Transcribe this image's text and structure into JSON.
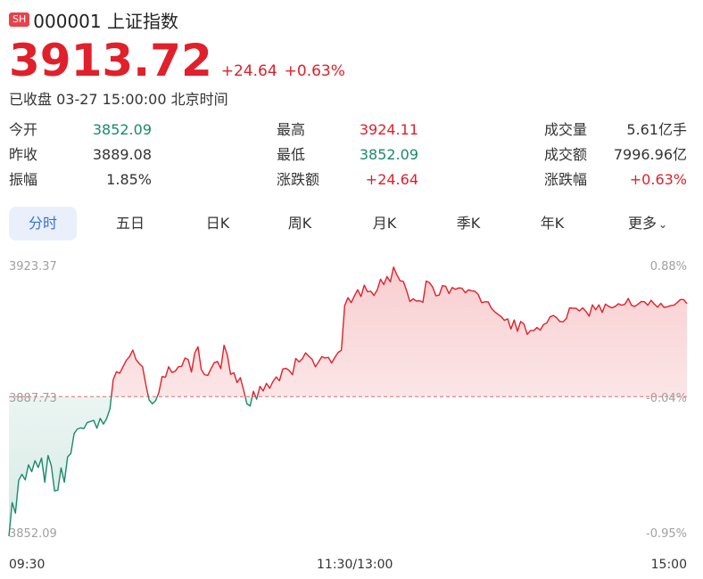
{
  "header": {
    "badge": "SH",
    "code_name": "000001 上证指数"
  },
  "quote": {
    "price": "3913.72",
    "change": "+24.64",
    "change_pct": "+0.63%",
    "status": "已收盘 03-27 15:00:00 北京时间"
  },
  "stats": {
    "open_label": "今开",
    "open": "3852.09",
    "high_label": "最高",
    "high": "3924.11",
    "volume_label": "成交量",
    "volume": "5.61亿手",
    "prev_label": "昨收",
    "prev": "3889.08",
    "low_label": "最低",
    "low": "3852.09",
    "amount_label": "成交额",
    "amount": "7996.96亿",
    "amp_label": "振幅",
    "amp": "1.85%",
    "chg_amt_label": "涨跌额",
    "chg_amt": "+24.64",
    "chg_pct_label": "涨跌幅",
    "chg_pct": "+0.63%"
  },
  "tabs": [
    "分时",
    "五日",
    "日K",
    "周K",
    "月K",
    "季K",
    "年K",
    "更多"
  ],
  "active_tab": 0,
  "colors": {
    "up": "#e0202a",
    "down": "#1a8a6a",
    "tab_active_bg": "#e9f0fb",
    "tab_active_text": "#3a72c9",
    "badge": "#e8424a"
  },
  "chart_data": {
    "type": "line",
    "x_tick_labels": [
      "09:30",
      "11:30/13:00",
      "15:00"
    ],
    "y_left_ticks": [
      "3923.37",
      "3887.73",
      "3852.09"
    ],
    "y_right_ticks": [
      "0.88%",
      "-0.04%",
      "-0.95%"
    ],
    "ylim": [
      3852.09,
      3923.37
    ],
    "ref_value": 3889.08,
    "series": [
      {
        "values": [
          3852.09,
          3861.0,
          3858.2,
          3866.9,
          3868.5,
          3867.0,
          3871.0,
          3869.2,
          3872.1,
          3870.3,
          3872.8,
          3866.4,
          3873.5,
          3870.8,
          3864.1,
          3864.3,
          3870.2,
          3866.4,
          3873.1,
          3874.0,
          3879.3,
          3880.5,
          3880.8,
          3880.6,
          3882.2,
          3882.5,
          3882.8,
          3880.7,
          3883.3,
          3881.8,
          3883.3,
          3885.9,
          3893.6,
          3895.7,
          3895.3,
          3897.0,
          3898.7,
          3899.7,
          3901.4,
          3898.9,
          3897.8,
          3897.0,
          3892.3,
          3888.2,
          3887.2,
          3888.0,
          3890.2,
          3894.4,
          3894.2,
          3897.0,
          3895.5,
          3895.8,
          3897.0,
          3897.1,
          3899.3,
          3898.9,
          3895.6,
          3900.6,
          3902.3,
          3896.3,
          3894.9,
          3894.7,
          3896.5,
          3898.1,
          3898.4,
          3896.5,
          3902.7,
          3900.1,
          3895.0,
          3895.4,
          3892.8,
          3894.1,
          3890.8,
          3887.2,
          3886.6,
          3890.5,
          3888.4,
          3891.8,
          3890.6,
          3892.6,
          3891.3,
          3893.1,
          3894.3,
          3893.3,
          3896.4,
          3896.6,
          3896.0,
          3894.9,
          3899.2,
          3898.3,
          3899.1,
          3900.7,
          3899.8,
          3899.0,
          3897.0,
          3898.3,
          3899.7,
          3899.3,
          3899.5,
          3898.0,
          3899.5,
          3900.8,
          3901.4,
          3913.2,
          3915.3,
          3914.0,
          3915.8,
          3917.4,
          3915.6,
          3918.6,
          3916.9,
          3917.0,
          3915.9,
          3917.4,
          3920.2,
          3918.8,
          3920.9,
          3919.5,
          3923.4,
          3921.4,
          3919.8,
          3919.6,
          3917.2,
          3914.3,
          3915.0,
          3914.4,
          3914.5,
          3914.1,
          3919.7,
          3919.3,
          3918.1,
          3915.8,
          3916.0,
          3918.5,
          3918.3,
          3916.4,
          3918.0,
          3917.5,
          3917.9,
          3917.8,
          3916.6,
          3917.4,
          3917.1,
          3917.0,
          3916.1,
          3914.0,
          3914.2,
          3914.2,
          3912.5,
          3911.6,
          3910.9,
          3910.3,
          3909.3,
          3909.7,
          3907.0,
          3909.4,
          3906.4,
          3909.0,
          3908.3,
          3905.6,
          3906.6,
          3906.6,
          3907.4,
          3906.7,
          3908.2,
          3908.6,
          3910.2,
          3910.6,
          3910.0,
          3909.0,
          3908.9,
          3909.8,
          3912.6,
          3912.5,
          3912.5,
          3911.8,
          3912.6,
          3911.7,
          3910.4,
          3913.4,
          3912.1,
          3913.4,
          3911.4,
          3913.6,
          3913.0,
          3912.6,
          3913.0,
          3913.7,
          3913.3,
          3913.6,
          3915.1,
          3913.3,
          3913.0,
          3913.6,
          3914.3,
          3914.2,
          3913.3,
          3914.6,
          3913.6,
          3912.8,
          3913.8,
          3912.7,
          3912.9,
          3913.2,
          3913.3,
          3914.0,
          3914.8,
          3914.8,
          3913.72
        ]
      }
    ],
    "grid": false
  }
}
